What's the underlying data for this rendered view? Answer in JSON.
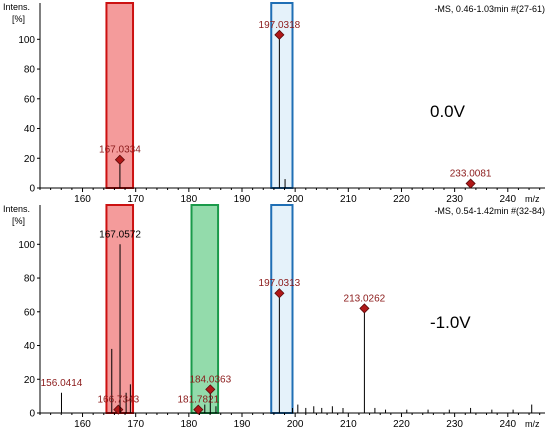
{
  "colors": {
    "red_band": "#f07a7a",
    "red_band_stroke": "#cc1111",
    "green_band": "#6fcf8f",
    "green_band_stroke": "#1a9a4a",
    "blue_band": "#cfe7f5",
    "blue_band_stroke": "#1f6fb5",
    "peak_label": "#8b1a1a",
    "diamond_fill": "#b01818",
    "axis": "#000000"
  },
  "chart_data": [
    {
      "type": "mass-spectrum",
      "header": "-MS, 0.46-1.03min #(27-61)",
      "ylabel_line1": "Intens.",
      "ylabel_line2": "[%]",
      "xlabel": "m/z",
      "voltage": "0.0V",
      "xlim": [
        152,
        247
      ],
      "ylim": [
        0,
        115
      ],
      "yticks": [
        0,
        20,
        40,
        60,
        80,
        100
      ],
      "xticks": [
        160,
        170,
        180,
        190,
        200,
        210,
        220,
        230,
        240
      ],
      "bands": [
        {
          "color": "red",
          "x0": 164.5,
          "x1": 169.5
        },
        {
          "color": "blue",
          "x0": 195.5,
          "x1": 199.5
        }
      ],
      "peaks": [
        {
          "mz": 167.0334,
          "y": 19,
          "label": "167.0334",
          "marker": true
        },
        {
          "mz": 197.0318,
          "y": 103,
          "label": "197.0318",
          "marker": true
        },
        {
          "mz": 198.1,
          "y": 6
        },
        {
          "mz": 233.0081,
          "y": 3,
          "label": "233.0081",
          "marker": true
        }
      ]
    },
    {
      "type": "mass-spectrum",
      "header": "-MS, 0.54-1.42min #(32-84)",
      "ylabel_line1": "Intens.",
      "ylabel_line2": "[%]",
      "xlabel": "m/z",
      "voltage": "-1.0V",
      "xlim": [
        152,
        247
      ],
      "ylim": [
        0,
        115
      ],
      "yticks": [
        0,
        20,
        40,
        60,
        80,
        100
      ],
      "xticks": [
        160,
        170,
        180,
        190,
        200,
        210,
        220,
        230,
        240
      ],
      "bands": [
        {
          "color": "red",
          "x0": 164.5,
          "x1": 169.5
        },
        {
          "color": "green",
          "x0": 180.5,
          "x1": 185.5
        },
        {
          "color": "blue",
          "x0": 195.5,
          "x1": 199.5
        }
      ],
      "peaks": [
        {
          "mz": 156.0414,
          "y": 12,
          "label": "156.0414",
          "marker": false
        },
        {
          "mz": 165.5,
          "y": 38
        },
        {
          "mz": 166.7343,
          "y": 2,
          "label": "166.7343",
          "marker": true
        },
        {
          "mz": 167.0572,
          "y": 100,
          "label": "167.0572",
          "marker": false
        },
        {
          "mz": 168.2,
          "y": 12
        },
        {
          "mz": 169.0,
          "y": 17
        },
        {
          "mz": 181.7821,
          "y": 2,
          "label": "181.7821",
          "marker": true
        },
        {
          "mz": 183.0,
          "y": 5
        },
        {
          "mz": 184.0363,
          "y": 14,
          "label": "184.0363",
          "marker": true
        },
        {
          "mz": 185.1,
          "y": 4
        },
        {
          "mz": 197.0313,
          "y": 71,
          "label": "197.0313",
          "marker": true
        },
        {
          "mz": 199.5,
          "y": 3
        },
        {
          "mz": 200.5,
          "y": 5
        },
        {
          "mz": 202.0,
          "y": 3
        },
        {
          "mz": 203.5,
          "y": 4
        },
        {
          "mz": 205.0,
          "y": 3
        },
        {
          "mz": 207.0,
          "y": 4
        },
        {
          "mz": 209.0,
          "y": 3
        },
        {
          "mz": 213.0262,
          "y": 62,
          "label": "213.0262",
          "marker": true
        },
        {
          "mz": 215.0,
          "y": 3
        },
        {
          "mz": 217.0,
          "y": 2
        },
        {
          "mz": 221.0,
          "y": 2
        },
        {
          "mz": 225.0,
          "y": 2
        },
        {
          "mz": 229.0,
          "y": 2
        },
        {
          "mz": 233.0,
          "y": 3
        },
        {
          "mz": 237.0,
          "y": 2
        },
        {
          "mz": 241.0,
          "y": 2
        },
        {
          "mz": 244.5,
          "y": 5
        }
      ]
    }
  ]
}
